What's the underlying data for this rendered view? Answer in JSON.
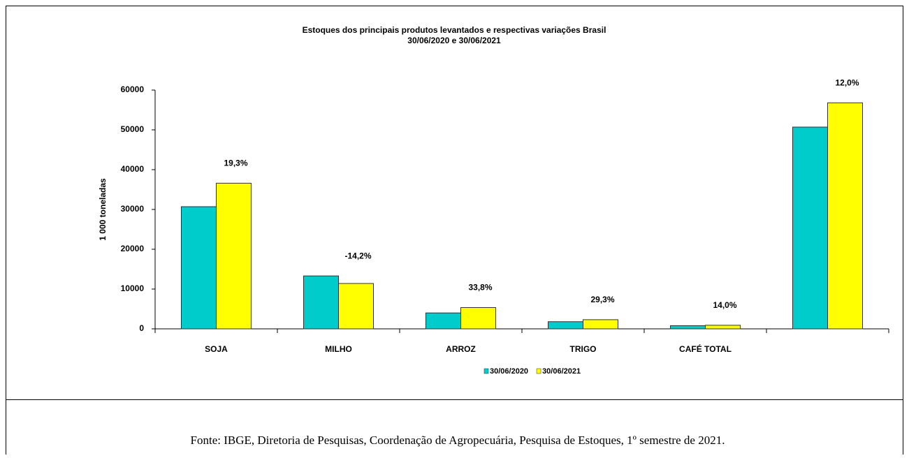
{
  "chart_data": {
    "type": "bar",
    "title": "Estoques dos principais produtos levantados e respectivas variações Brasil",
    "subtitle": "30/06/2020 e 30/06/2021",
    "y_label": "1 000 toneladas",
    "categories": [
      "SOJA",
      "MILHO",
      "ARROZ",
      "TRIGO",
      "CAFÉ TOTAL",
      null
    ],
    "series": [
      {
        "name": "30/06/2020",
        "color": "#00cccc",
        "values": [
          30700,
          13300,
          4000,
          1800,
          800,
          50700
        ]
      },
      {
        "name": "30/06/2021",
        "color": "#ffff00",
        "values": [
          36600,
          11400,
          5350,
          2300,
          900,
          56800
        ]
      }
    ],
    "annotations": [
      "19,3%",
      "-14,2%",
      "33,8%",
      "29,3%",
      "14,0%",
      "12,0%"
    ],
    "ylim": [
      0,
      60000
    ],
    "yticks": [
      0,
      10000,
      20000,
      30000,
      40000,
      50000,
      60000
    ],
    "grid": false,
    "legend": "bottom"
  },
  "source": "Fonte: IBGE, Diretoria de Pesquisas, Coordenação de Agropecuária, Pesquisa de Estoques, 1º semestre de 2021."
}
